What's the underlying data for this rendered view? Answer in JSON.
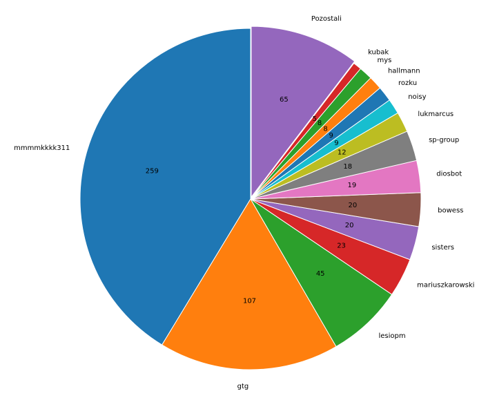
{
  "chart_data": {
    "type": "pie",
    "start_angle_deg": 90,
    "direction": "counterclockwise",
    "colors": [
      "#1f77b4",
      "#ff7f0e",
      "#2ca02c",
      "#d62728",
      "#9467bd",
      "#8c564b",
      "#e377c2",
      "#7f7f7f",
      "#bcbd22",
      "#17becf"
    ],
    "slices": [
      {
        "label": "mmmmkkkk311",
        "value": 259
      },
      {
        "label": "gtg",
        "value": 107
      },
      {
        "label": "lesiopm",
        "value": 45
      },
      {
        "label": "mariuszkarowski",
        "value": 23
      },
      {
        "label": "sisters",
        "value": 20
      },
      {
        "label": "bowess",
        "value": 20
      },
      {
        "label": "diosbot",
        "value": 19
      },
      {
        "label": "sp-group",
        "value": 18
      },
      {
        "label": "lukmarcus",
        "value": 12
      },
      {
        "label": "noisy",
        "value": 9
      },
      {
        "label": "rozku",
        "value": 9
      },
      {
        "label": "hallmann",
        "value": 8
      },
      {
        "label": "mys",
        "value": 8
      },
      {
        "label": "kubak",
        "value": 5
      },
      {
        "label": "Pozostali",
        "value": 65
      }
    ]
  }
}
